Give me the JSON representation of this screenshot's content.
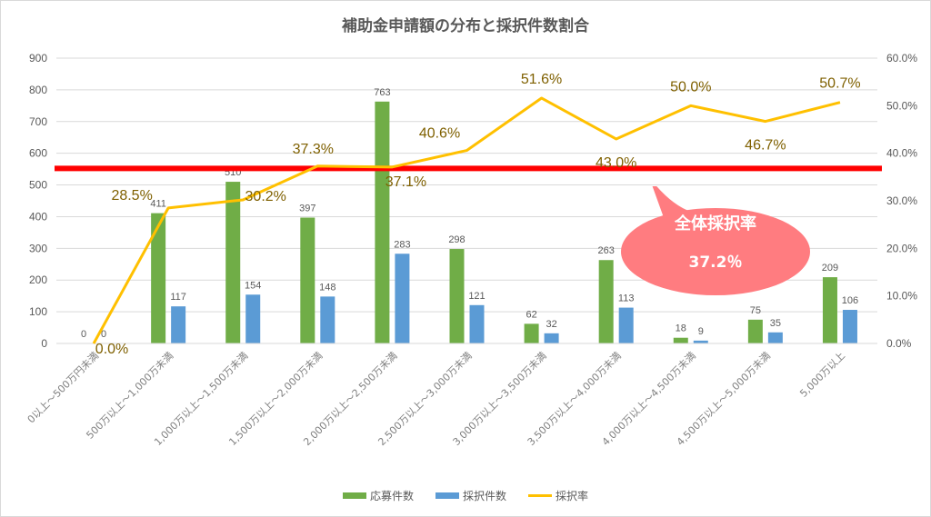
{
  "title": "補助金申請額の分布と採択件数割合",
  "legend": {
    "applications": "応募件数",
    "adopted": "採択件数",
    "rate": "採択率"
  },
  "colors": {
    "applications": "#70ad47",
    "adopted": "#5b9bd5",
    "rate": "#ffc000",
    "rate_label": "#7f6000",
    "overall_line": "#ff0000",
    "callout": "#ff7c80"
  },
  "callout": {
    "line1": "全体採択率",
    "line2": "37.2％"
  },
  "left_axis_ticks": [
    "0",
    "100",
    "200",
    "300",
    "400",
    "500",
    "600",
    "700",
    "800",
    "900"
  ],
  "right_axis_ticks": [
    "0.0%",
    "10.0%",
    "20.0%",
    "30.0%",
    "40.0%",
    "50.0%",
    "60.0%"
  ],
  "chart_data": {
    "type": "bar",
    "title": "補助金申請額の分布と採択件数割合",
    "xlabel": "",
    "ylabel": "",
    "ylim": [
      0,
      900
    ],
    "y2lim": [
      0,
      0.6
    ],
    "grid": true,
    "legend_position": "bottom",
    "categories": [
      "0以上～500万円未満",
      "500万以上～1,000万未満",
      "1,000万以上～1,500万未満",
      "1,500万以上～2,000万未満",
      "2,000万以上～2,500万未満",
      "2,500万以上～3,000万未満",
      "3,000万以上～3,500万未満",
      "3,500万以上～4,000万未満",
      "4,000万以上～4,500万未満",
      "4,500万以上～5,000万未満",
      "5,000万以上"
    ],
    "series": [
      {
        "name": "応募件数",
        "type": "bar",
        "axis": "left",
        "values": [
          0,
          411,
          510,
          397,
          763,
          298,
          62,
          263,
          18,
          75,
          209
        ]
      },
      {
        "name": "採択件数",
        "type": "bar",
        "axis": "left",
        "values": [
          0,
          117,
          154,
          148,
          283,
          121,
          32,
          113,
          9,
          35,
          106
        ]
      },
      {
        "name": "採択率",
        "type": "line",
        "axis": "right",
        "values": [
          0.0,
          28.5,
          30.2,
          37.3,
          37.1,
          40.6,
          51.6,
          43.0,
          50.0,
          46.7,
          50.7
        ],
        "labels": [
          "0.0%",
          "28.5%",
          "30.2%",
          "37.3%",
          "37.1%",
          "40.6%",
          "51.6%",
          "43.0%",
          "50.0%",
          "46.7%",
          "50.7%"
        ]
      }
    ],
    "annotations": [
      {
        "type": "hline",
        "axis": "right",
        "value": 37.2,
        "color": "#ff0000",
        "label": "全体採択率 37.2％"
      }
    ]
  }
}
